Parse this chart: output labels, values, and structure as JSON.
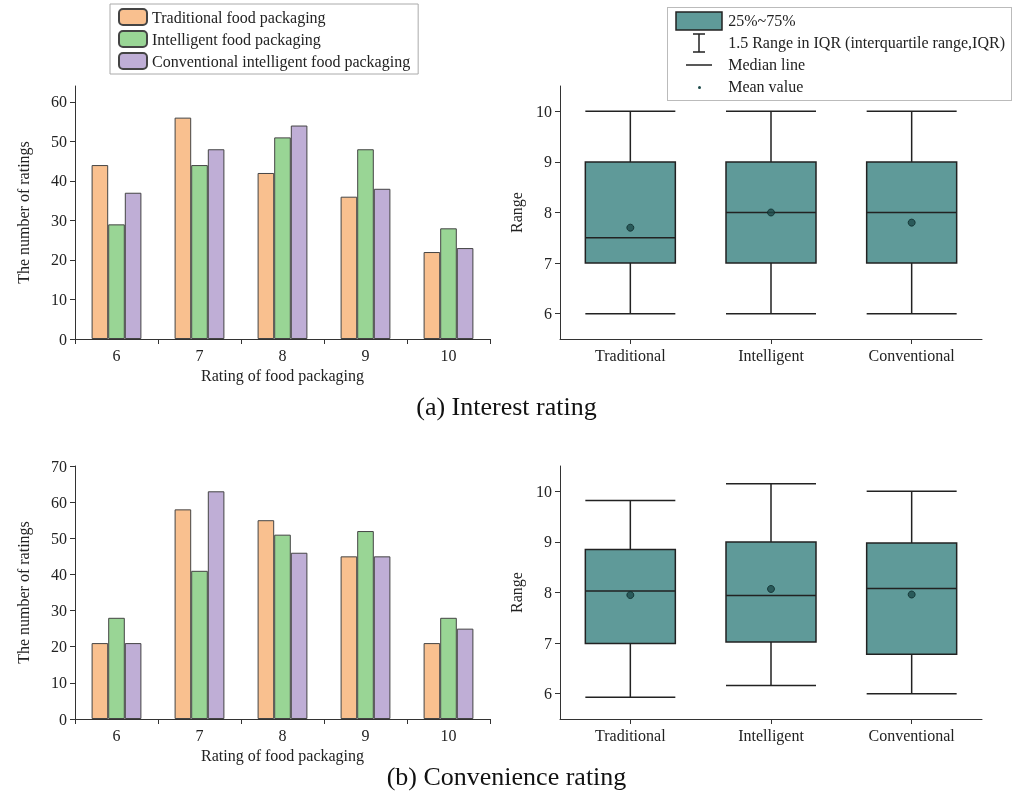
{
  "chart_data": [
    {
      "type": "bar",
      "xlabel": "Rating of food packaging",
      "ylabel": "The number of ratings",
      "categories": [
        "6",
        "7",
        "8",
        "9",
        "10"
      ],
      "series": [
        {
          "name": "Traditional food packaging",
          "color": "#f9c08f",
          "values": [
            44,
            56,
            42,
            36,
            22
          ]
        },
        {
          "name": "Intelligent food packaging",
          "color": "#99d595",
          "values": [
            29,
            44,
            51,
            48,
            28
          ]
        },
        {
          "name": "Conventional intelligent food packaging",
          "color": "#bfaed6",
          "values": [
            37,
            48,
            54,
            38,
            23
          ]
        }
      ],
      "ylim": [
        0,
        64
      ],
      "yticks": [
        0,
        10,
        20,
        30,
        40,
        50,
        60
      ],
      "grid": false,
      "legend": "top",
      "annotations": [
        "(a) Interest rating"
      ]
    },
    {
      "type": "box",
      "ylabel": "Range",
      "categories": [
        "Traditional",
        "Intelligent",
        "Conventional"
      ],
      "series": [
        {
          "color": "#5f9a99",
          "boxes": [
            {
              "low": 6,
              "q1": 7,
              "median": 7.5,
              "q3": 9,
              "high": 10,
              "mean": 7.7
            },
            {
              "low": 6,
              "q1": 7,
              "median": 8,
              "q3": 9,
              "high": 10,
              "mean": 8.0
            },
            {
              "low": 6,
              "q1": 7,
              "median": 8,
              "q3": 9,
              "high": 10,
              "mean": 7.8
            }
          ]
        }
      ],
      "ylim": [
        5.5,
        10.5
      ],
      "yticks": [
        6,
        7,
        8,
        9,
        10
      ],
      "grid": false,
      "annotations": [
        "25%~75%",
        "1.5 Range in IQR (interquartile range,IQR)",
        "Median line",
        "Mean value"
      ]
    },
    {
      "type": "bar",
      "xlabel": "Rating of food packaging",
      "ylabel": "The number of ratings",
      "categories": [
        "6",
        "7",
        "8",
        "9",
        "10"
      ],
      "series": [
        {
          "color": "#f9c08f",
          "values": [
            21,
            58,
            55,
            45,
            21
          ]
        },
        {
          "color": "#99d595",
          "values": [
            28,
            41,
            51,
            52,
            28
          ]
        },
        {
          "color": "#bfaed6",
          "values": [
            21,
            63,
            46,
            45,
            25
          ]
        }
      ],
      "ylim": [
        0,
        70
      ],
      "yticks": [
        0,
        10,
        20,
        30,
        40,
        50,
        60,
        70
      ],
      "grid": false,
      "annotations": [
        "(b) Convenience rating"
      ]
    },
    {
      "type": "box",
      "ylabel": "Range",
      "categories": [
        "Traditional",
        "Intelligent",
        "Conventional"
      ],
      "series": [
        {
          "color": "#5f9a99",
          "boxes": [
            {
              "low": 5.93,
              "q1": 6.99,
              "median": 8.03,
              "q3": 8.85,
              "high": 9.82,
              "mean": 7.95
            },
            {
              "low": 6.16,
              "q1": 7.02,
              "median": 7.94,
              "q3": 9.0,
              "high": 10.15,
              "mean": 8.07
            },
            {
              "low": 6.0,
              "q1": 6.78,
              "median": 8.08,
              "q3": 8.98,
              "high": 10.0,
              "mean": 7.96
            }
          ]
        }
      ],
      "ylim": [
        5.5,
        10.5
      ],
      "yticks": [
        6,
        7,
        8,
        9,
        10
      ],
      "grid": false
    }
  ]
}
